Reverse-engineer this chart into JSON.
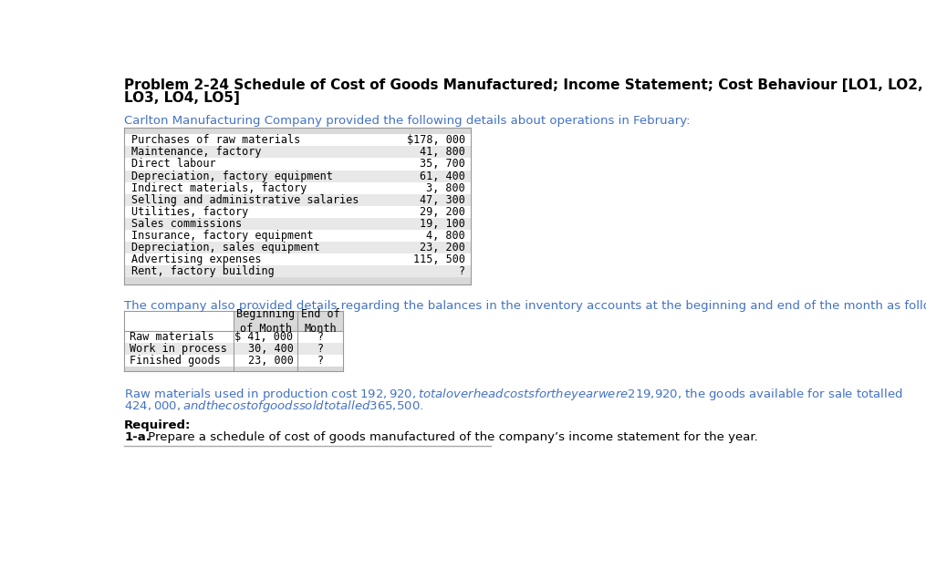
{
  "title_line1": "Problem 2-24 Schedule of Cost of Goods Manufactured; Income Statement; Cost Behaviour [LO1, LO2,",
  "title_line2": "LO3, LO4, LO5]",
  "intro_text": "Carlton Manufacturing Company provided the following details about operations in February:",
  "table1_rows": [
    [
      "Purchases of raw materials",
      "$178, 000"
    ],
    [
      "Maintenance, factory",
      "41, 800"
    ],
    [
      "Direct labour",
      "35, 700"
    ],
    [
      "Depreciation, factory equipment",
      "61, 400"
    ],
    [
      "Indirect materials, factory",
      "3, 800"
    ],
    [
      "Selling and administrative salaries",
      "47, 300"
    ],
    [
      "Utilities, factory",
      "29, 200"
    ],
    [
      "Sales commissions",
      "19, 100"
    ],
    [
      "Insurance, factory equipment",
      "4, 800"
    ],
    [
      "Depreciation, sales equipment",
      "23, 200"
    ],
    [
      "Advertising expenses",
      "115, 500"
    ],
    [
      "Rent, factory building",
      "?"
    ]
  ],
  "inventory_intro": "The company also provided details regarding the balances in the inventory accounts at the beginning and end of the month as follows:",
  "table2_rows": [
    [
      "Raw materials",
      "$ 41, 000",
      "?"
    ],
    [
      "Work in process",
      "30, 400",
      "?"
    ],
    [
      "Finished goods",
      "23, 000",
      "?"
    ]
  ],
  "para_line1": "Raw materials used in production cost $192,920, total overhead costs for the year were $219,920, the goods available for sale totalled",
  "para_line2": "$424,000, and the cost of goods sold totalled $365,500.",
  "required_label": "Required:",
  "required_text": "1-a. Prepare a schedule of cost of goods manufactured of the company’s income statement for the year.",
  "bg_color": "#ffffff",
  "title_color": "#000000",
  "intro_color": "#4472C4",
  "table1_header_bg": "#D9D9D9",
  "table1_row_bg_odd": "#E8E8E8",
  "table1_row_bg_even": "#ffffff",
  "table2_header_bg": "#D9D9D9",
  "table_border_color": "#999999",
  "mono_font": "monospace",
  "body_font": "DejaVu Sans"
}
